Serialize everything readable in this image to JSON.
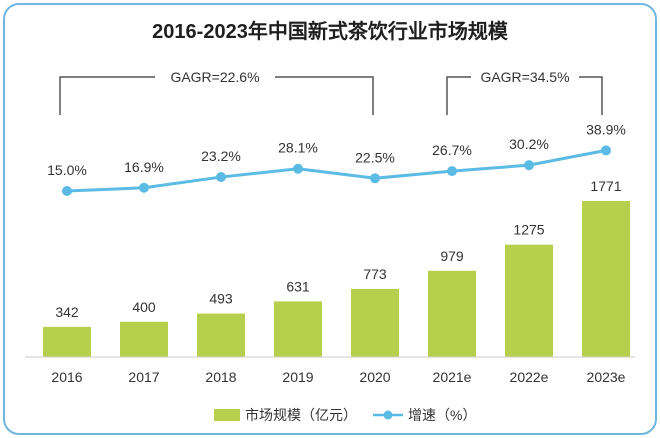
{
  "chart_data": {
    "type": "bar",
    "title": "2016-2023年中国新式茶饮行业市场规模",
    "categories": [
      "2016",
      "2017",
      "2018",
      "2019",
      "2020",
      "2021e",
      "2022e",
      "2023e"
    ],
    "series": [
      {
        "name": "市场规模（亿元）",
        "type": "bar",
        "values": [
          342,
          400,
          493,
          631,
          773,
          979,
          1275,
          1771
        ],
        "color": "#b6cf4d"
      },
      {
        "name": "增速（%）",
        "type": "line",
        "values": [
          15.0,
          16.9,
          23.2,
          28.1,
          22.5,
          26.7,
          30.2,
          38.9
        ],
        "labels": [
          "15.0%",
          "16.9%",
          "23.2%",
          "28.1%",
          "22.5%",
          "26.7%",
          "30.2%",
          "38.9%"
        ],
        "color": "#5bbbe4"
      }
    ],
    "annotations": [
      {
        "text": "GAGR=22.6%",
        "from": "2016",
        "to": "2020"
      },
      {
        "text": "GAGR=34.5%",
        "from": "2021e",
        "to": "2023e"
      }
    ],
    "legend_position": "bottom",
    "grid": false
  }
}
